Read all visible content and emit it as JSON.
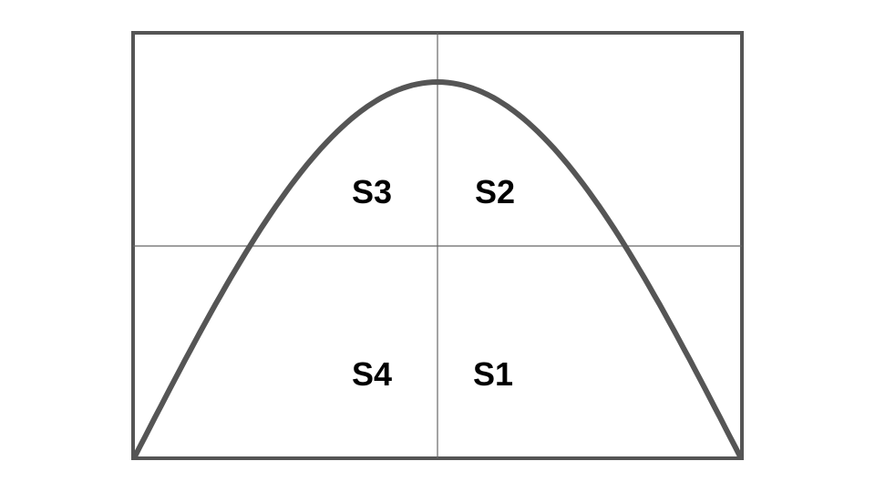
{
  "diagram": {
    "labels": {
      "s1": "S1",
      "s2": "S2",
      "s3": "S3",
      "s4": "S4"
    }
  },
  "colors": {
    "frame": "#555555",
    "grid": "#666666",
    "curve": "#555555",
    "text": "#000000",
    "background": "#ffffff"
  }
}
